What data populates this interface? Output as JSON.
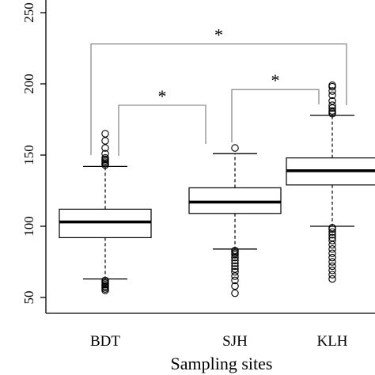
{
  "chart_data": {
    "type": "boxplot",
    "title": "",
    "xlabel": "Sampling sites",
    "ylabel": "",
    "ylim": [
      50,
      250
    ],
    "yticks": [
      50,
      100,
      150,
      200,
      250
    ],
    "ytick_labels": [
      "50",
      "100",
      "150",
      "200",
      "250"
    ],
    "grid": false,
    "categories": [
      "BDT",
      "SJH",
      "KLH"
    ],
    "boxes": [
      {
        "name": "BDT",
        "whisker_low": 63,
        "q1": 92,
        "median": 103,
        "q3": 112,
        "whisker_high": 142,
        "outliers_high": [
          143,
          144,
          145,
          146,
          147,
          148,
          151,
          155,
          160,
          165
        ],
        "outliers_low": [
          55,
          56,
          57,
          58,
          59,
          60,
          61,
          62
        ]
      },
      {
        "name": "SJH",
        "whisker_low": 84,
        "q1": 109,
        "median": 117,
        "q3": 127,
        "whisker_high": 151,
        "outliers_high": [
          155
        ],
        "outliers_low": [
          53,
          58,
          62,
          65,
          68,
          70,
          72,
          74,
          76,
          78,
          80,
          81,
          82,
          83
        ]
      },
      {
        "name": "KLH",
        "whisker_low": 100,
        "q1": 129,
        "median": 139,
        "q3": 148,
        "whisker_high": 178,
        "outliers_high": [
          179,
          180,
          181,
          183,
          185,
          188,
          192,
          195,
          198,
          199
        ],
        "outliers_low": [
          63,
          66,
          69,
          72,
          75,
          78,
          81,
          84,
          87,
          90,
          92,
          94,
          96,
          98,
          99
        ]
      }
    ],
    "significance_brackets": [
      {
        "from": "BDT",
        "to": "KLH",
        "label": "*",
        "y": 228
      },
      {
        "from": "BDT",
        "to": "SJH",
        "label": "*",
        "y": 185
      },
      {
        "from": "SJH",
        "to": "KLH",
        "label": "*",
        "y": 196
      }
    ]
  }
}
